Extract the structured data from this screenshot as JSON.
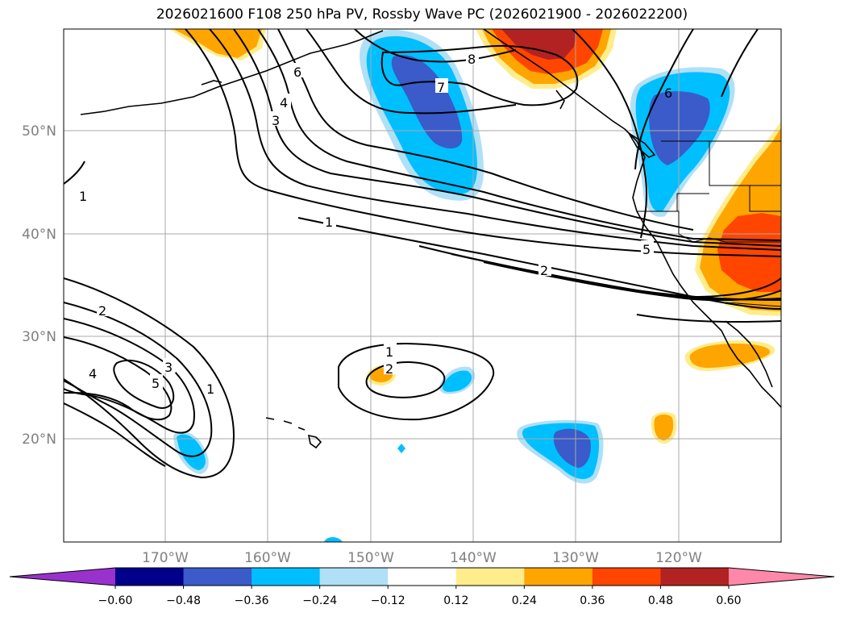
{
  "title": "2026021600 F108 250 hPa PV, Rossby Wave PC (2026021900 - 2026022200)",
  "lon_labels": [
    "170°W",
    "160°W",
    "150°W",
    "140°W",
    "130°W",
    "120°W"
  ],
  "lat_labels": [
    "50°N",
    "40°N",
    "30°N",
    "20°N"
  ],
  "colorbar": {
    "ticks": [
      "−0.60",
      "−0.48",
      "−0.36",
      "−0.24",
      "−0.12",
      "0.12",
      "0.24",
      "0.36",
      "0.48",
      "0.60"
    ],
    "colors": [
      "#9932cc",
      "#00008b",
      "#3a5bc9",
      "#00bfff",
      "#b0e0f6",
      "#ffffff",
      "#ffec8b",
      "#ffa500",
      "#ff4500",
      "#b22222",
      "#ff88aa"
    ]
  },
  "contour_labels": {
    "north_1": "1",
    "north_2": "2",
    "north_3": "3",
    "north_4": "4",
    "north_5": "5",
    "north_6": "6",
    "north_7": "7",
    "north_8": "8",
    "north_6b": "6",
    "west_1": "1",
    "sw_2": "2",
    "sw_3": "3",
    "sw_4": "4",
    "sw_5": "5",
    "sw_1": "1",
    "mid_1": "1",
    "mid_2": "2"
  }
}
